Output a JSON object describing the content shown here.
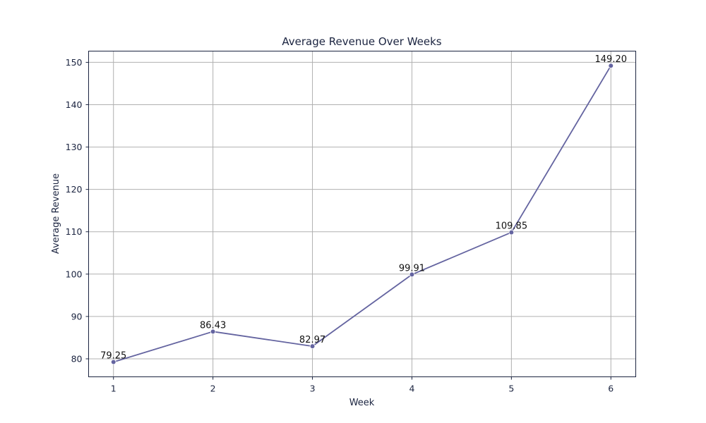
{
  "chart_data": {
    "type": "line",
    "title": "Average Revenue Over Weeks",
    "xlabel": "Week",
    "ylabel": "Average Revenue",
    "x": [
      1,
      2,
      3,
      4,
      5,
      6
    ],
    "x_tick_labels": [
      "1",
      "2",
      "3",
      "4",
      "5",
      "6"
    ],
    "y_tick_labels": [
      "80",
      "90",
      "100",
      "110",
      "120",
      "130",
      "140",
      "150"
    ],
    "y_ticks": [
      80,
      90,
      100,
      110,
      120,
      130,
      140,
      150
    ],
    "xlim": [
      0.75,
      6.25
    ],
    "ylim": [
      75.75,
      152.65
    ],
    "grid": true,
    "series": [
      {
        "values": [
          79.25,
          86.43,
          82.97,
          99.91,
          109.85,
          149.2
        ],
        "data_labels": [
          "79.25",
          "86.43",
          "82.97",
          "99.91",
          "109.85",
          "149.20"
        ],
        "color": "#6464a0",
        "marker": "circle"
      }
    ]
  }
}
